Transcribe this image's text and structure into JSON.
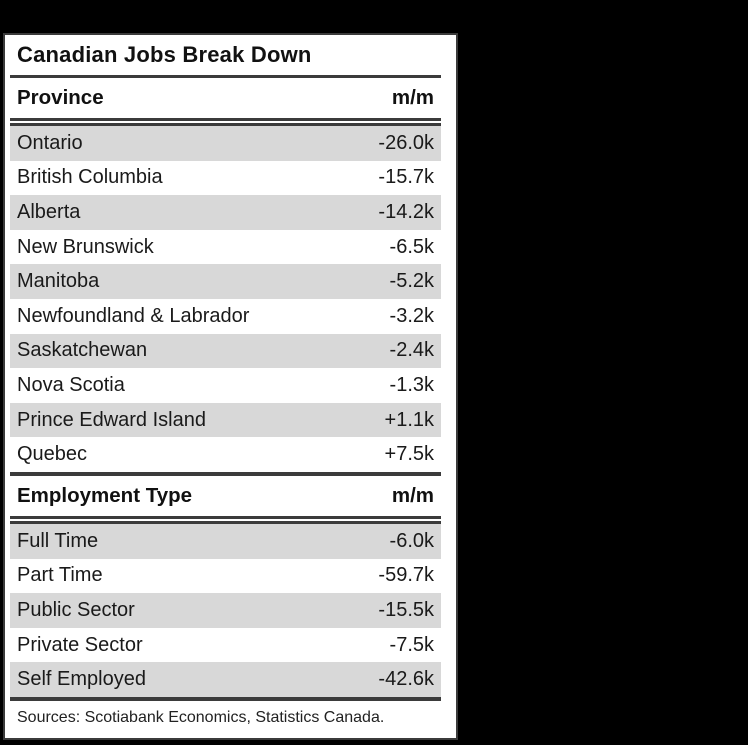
{
  "title": "Canadian Jobs Break Down",
  "sections": [
    {
      "header": "Province",
      "unit": "m/m",
      "rows": [
        {
          "label": "Ontario",
          "value": "-26.0k"
        },
        {
          "label": "British Columbia",
          "value": "-15.7k"
        },
        {
          "label": "Alberta",
          "value": "-14.2k"
        },
        {
          "label": "New Brunswick",
          "value": "-6.5k"
        },
        {
          "label": "Manitoba",
          "value": "-5.2k"
        },
        {
          "label": "Newfoundland & Labrador",
          "value": "-3.2k"
        },
        {
          "label": "Saskatchewan",
          "value": "-2.4k"
        },
        {
          "label": "Nova Scotia",
          "value": "-1.3k"
        },
        {
          "label": "Prince Edward Island",
          "value": "+1.1k"
        },
        {
          "label": "Quebec",
          "value": "+7.5k"
        }
      ]
    },
    {
      "header": "Employment Type",
      "unit": "m/m",
      "rows": [
        {
          "label": "Full Time",
          "value": "-6.0k"
        },
        {
          "label": "Part Time",
          "value": "-59.7k"
        },
        {
          "label": "Public Sector",
          "value": "-15.5k"
        },
        {
          "label": "Private Sector",
          "value": "-7.5k"
        },
        {
          "label": "Self Employed",
          "value": "-42.6k"
        }
      ]
    }
  ],
  "footer": "Sources: Scotiabank Economics, Statistics Canada.",
  "chart_data": {
    "type": "table",
    "title": "Canadian Jobs Break Down",
    "unit": "m/m, thousands of jobs",
    "sections": [
      {
        "name": "Province",
        "categories": [
          "Ontario",
          "British Columbia",
          "Alberta",
          "New Brunswick",
          "Manitoba",
          "Newfoundland & Labrador",
          "Saskatchewan",
          "Nova Scotia",
          "Prince Edward Island",
          "Quebec"
        ],
        "values": [
          -26.0,
          -15.7,
          -14.2,
          -6.5,
          -5.2,
          -3.2,
          -2.4,
          -1.3,
          1.1,
          7.5
        ]
      },
      {
        "name": "Employment Type",
        "categories": [
          "Full Time",
          "Part Time",
          "Public Sector",
          "Private Sector",
          "Self Employed"
        ],
        "values": [
          -6.0,
          -59.7,
          -15.5,
          -7.5,
          -42.6
        ]
      }
    ],
    "source": "Scotiabank Economics, Statistics Canada"
  },
  "colors": {
    "background": "#000000",
    "card_background": "#ffffff",
    "stripe": "#d8d8d8",
    "rule": "#3b3b3b",
    "text": "#1a1a1a"
  }
}
